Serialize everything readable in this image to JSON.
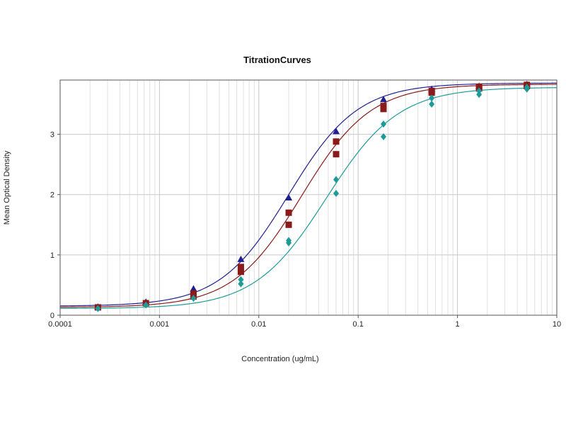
{
  "chart_data": {
    "type": "scatter",
    "title": "TitrationCurves",
    "xlabel": "Concentration (ug/mL)",
    "ylabel": "Mean Optical Density",
    "x_scale": "log",
    "xlim": [
      0.0001,
      10
    ],
    "ylim": [
      0,
      3.9
    ],
    "x_ticks": [
      "0.0001",
      "0.001",
      "0.01",
      "0.1",
      "1",
      "10"
    ],
    "x_tick_values": [
      0.0001,
      0.001,
      0.01,
      0.1,
      1,
      10
    ],
    "y_ticks": [
      "0",
      "1",
      "2",
      "3"
    ],
    "y_tick_values": [
      0,
      1,
      2,
      3
    ],
    "grid": true,
    "legend": "none",
    "series": [
      {
        "color": "#1f1f8f",
        "marker": "triangle",
        "points": [
          {
            "x": 0.00024,
            "y": 0.14
          },
          {
            "x": 0.00073,
            "y": 0.22
          },
          {
            "x": 0.0022,
            "y": 0.44
          },
          {
            "x": 0.0066,
            "y": 0.93
          },
          {
            "x": 0.02,
            "y": 1.95
          },
          {
            "x": 0.06,
            "y": 3.05
          },
          {
            "x": 0.18,
            "y": 3.58
          },
          {
            "x": 0.55,
            "y": 3.75
          },
          {
            "x": 1.65,
            "y": 3.8
          },
          {
            "x": 5,
            "y": 3.83
          }
        ],
        "curve": {
          "bottom": 0.15,
          "top": 3.85,
          "ec50": 0.02,
          "hill": 1.25
        }
      },
      {
        "color": "#8b1a1a",
        "marker": "square",
        "points": [
          {
            "x": 0.00024,
            "y": 0.13
          },
          {
            "x": 0.00073,
            "y": 0.2
          },
          {
            "x": 0.0022,
            "y": 0.36
          },
          {
            "x": 0.0022,
            "y": 0.31
          },
          {
            "x": 0.0066,
            "y": 0.8
          },
          {
            "x": 0.0066,
            "y": 0.72
          },
          {
            "x": 0.02,
            "y": 1.7
          },
          {
            "x": 0.02,
            "y": 1.5
          },
          {
            "x": 0.06,
            "y": 2.88
          },
          {
            "x": 0.06,
            "y": 2.67
          },
          {
            "x": 0.18,
            "y": 3.47
          },
          {
            "x": 0.18,
            "y": 3.42
          },
          {
            "x": 0.55,
            "y": 3.72
          },
          {
            "x": 0.55,
            "y": 3.69
          },
          {
            "x": 1.65,
            "y": 3.79
          },
          {
            "x": 1.65,
            "y": 3.76
          },
          {
            "x": 5,
            "y": 3.82
          },
          {
            "x": 5,
            "y": 3.8
          }
        ],
        "curve": {
          "bottom": 0.13,
          "top": 3.83,
          "ec50": 0.027,
          "hill": 1.25
        }
      },
      {
        "color": "#1e9b96",
        "marker": "diamond",
        "points": [
          {
            "x": 0.00024,
            "y": 0.11
          },
          {
            "x": 0.00073,
            "y": 0.17
          },
          {
            "x": 0.0022,
            "y": 0.28
          },
          {
            "x": 0.0066,
            "y": 0.59
          },
          {
            "x": 0.0066,
            "y": 0.52
          },
          {
            "x": 0.02,
            "y": 1.24
          },
          {
            "x": 0.02,
            "y": 1.2
          },
          {
            "x": 0.06,
            "y": 2.25
          },
          {
            "x": 0.06,
            "y": 2.02
          },
          {
            "x": 0.18,
            "y": 3.17
          },
          {
            "x": 0.18,
            "y": 2.96
          },
          {
            "x": 0.55,
            "y": 3.6
          },
          {
            "x": 0.55,
            "y": 3.5
          },
          {
            "x": 1.65,
            "y": 3.72
          },
          {
            "x": 1.65,
            "y": 3.66
          },
          {
            "x": 5,
            "y": 3.78
          },
          {
            "x": 5,
            "y": 3.75
          }
        ],
        "curve": {
          "bottom": 0.11,
          "top": 3.78,
          "ec50": 0.048,
          "hill": 1.2
        }
      }
    ]
  }
}
